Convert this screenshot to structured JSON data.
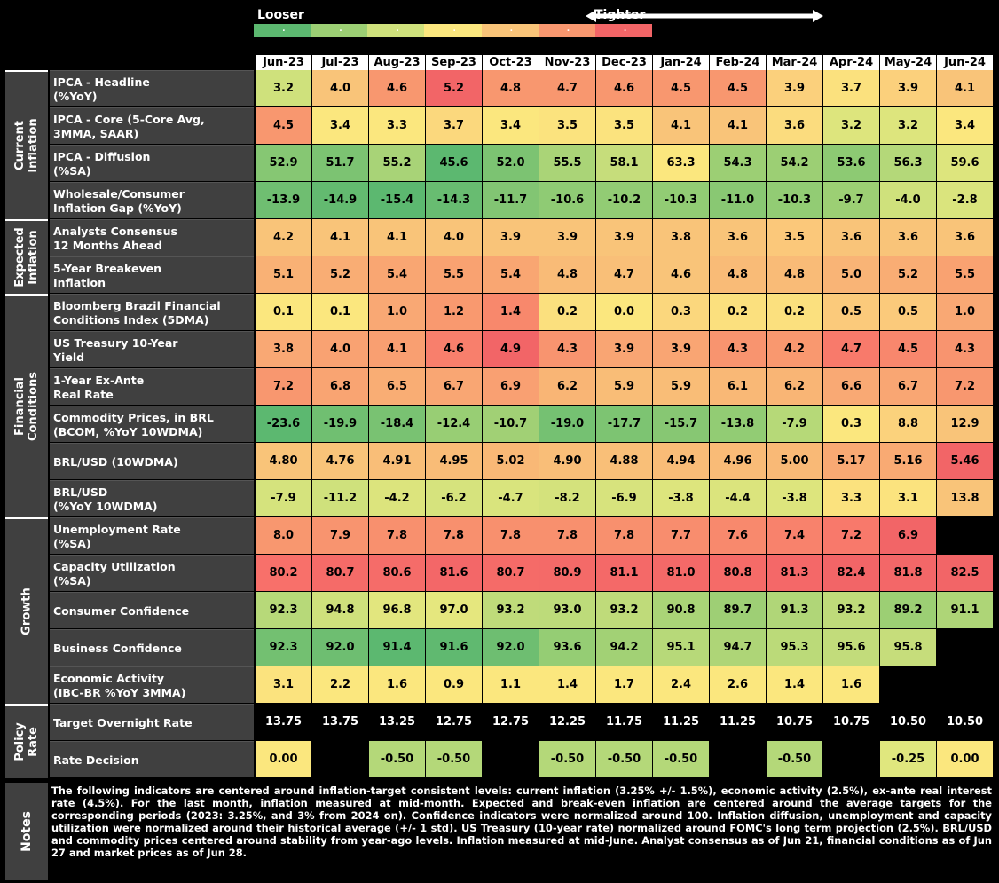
{
  "legend": {
    "left_label": "Looser",
    "right_label": "Tighter",
    "colors": [
      "#5cb870",
      "#9ccf74",
      "#cfe17c",
      "#fbe77e",
      "#f9c479",
      "#f8976f",
      "#f26567"
    ]
  },
  "chart_data": {
    "type": "heatmap",
    "columns": [
      "Jun-23",
      "Jul-23",
      "Aug-23",
      "Sep-23",
      "Oct-23",
      "Nov-23",
      "Dec-23",
      "Jan-24",
      "Feb-24",
      "Mar-24",
      "Apr-24",
      "May-24",
      "Jun-24"
    ],
    "groups": [
      {
        "name_line1": "Current",
        "name_line2": "Inflation",
        "rows": [
          {
            "label_line1": "IPCA - Headline",
            "label_line2": "(%YoY)",
            "values": [
              "3.2",
              "4.0",
              "4.6",
              "5.2",
              "4.8",
              "4.7",
              "4.6",
              "4.5",
              "4.5",
              "3.9",
              "3.7",
              "3.9",
              "4.1"
            ],
            "colors": [
              "#cfe17c",
              "#f9c479",
              "#f8976f",
              "#f26567",
              "#f8976f",
              "#f8976f",
              "#f8976f",
              "#f8976f",
              "#f8976f",
              "#fbd07c",
              "#fbe17e",
              "#fbd07c",
              "#f9c479"
            ]
          },
          {
            "label_line1": "IPCA - Core (5-Core Avg,",
            "label_line2": "3MMA, SAAR)",
            "values": [
              "4.5",
              "3.4",
              "3.3",
              "3.7",
              "3.4",
              "3.5",
              "3.5",
              "4.1",
              "4.1",
              "3.6",
              "3.2",
              "3.2",
              "3.4"
            ],
            "colors": [
              "#f8976f",
              "#fbe77e",
              "#fbe77e",
              "#fbd87d",
              "#fbe77e",
              "#fbe37e",
              "#fbe37e",
              "#f9c479",
              "#f9c479",
              "#fbdc7e",
              "#dde57d",
              "#dde57d",
              "#fbe77e"
            ]
          },
          {
            "label_line1": "IPCA - Diffusion",
            "label_line2": "(%SA)",
            "values": [
              "52.9",
              "51.7",
              "55.2",
              "45.6",
              "52.0",
              "55.5",
              "58.1",
              "63.3",
              "54.3",
              "54.2",
              "53.6",
              "56.3",
              "59.6"
            ],
            "colors": [
              "#86c773",
              "#7cc372",
              "#a8d377",
              "#5cb870",
              "#7cc372",
              "#aad477",
              "#c6dd7b",
              "#fbe77e",
              "#9ccf74",
              "#9ccf74",
              "#8dca73",
              "#b4d879",
              "#dde57d"
            ]
          },
          {
            "label_line1": "Wholesale/Consumer",
            "label_line2": "Inflation Gap (%YoY)",
            "values": [
              "-13.9",
              "-14.9",
              "-15.4",
              "-14.3",
              "-11.7",
              "-10.6",
              "-10.2",
              "-10.3",
              "-11.0",
              "-10.3",
              "-9.7",
              "-4.0",
              "-2.8"
            ],
            "colors": [
              "#6fbe71",
              "#63ba70",
              "#5cb870",
              "#68bc71",
              "#82c573",
              "#8fcb74",
              "#92cc74",
              "#92cc74",
              "#89c873",
              "#92cc74",
              "#9ccf74",
              "#cfe17c",
              "#dae47d"
            ]
          }
        ]
      },
      {
        "name_line1": "Expected",
        "name_line2": "Inflation",
        "rows": [
          {
            "label_line1": "Analysts Consensus",
            "label_line2": "12 Months Ahead",
            "values": [
              "4.2",
              "4.1",
              "4.1",
              "4.0",
              "3.9",
              "3.9",
              "3.9",
              "3.8",
              "3.6",
              "3.5",
              "3.6",
              "3.6",
              "3.6"
            ],
            "colors": [
              "#f9c479",
              "#f9c479",
              "#f9c479",
              "#f9c479",
              "#f9c479",
              "#f9c479",
              "#f9c479",
              "#f9c479",
              "#f9c479",
              "#fbc87a",
              "#f9c479",
              "#f9c479",
              "#f9c479"
            ]
          },
          {
            "label_line1": "5-Year Breakeven",
            "label_line2": "Inflation",
            "values": [
              "5.1",
              "5.2",
              "5.4",
              "5.5",
              "5.4",
              "4.8",
              "4.7",
              "4.6",
              "4.8",
              "4.8",
              "5.0",
              "5.2",
              "5.5"
            ],
            "colors": [
              "#f9b175",
              "#f9ad74",
              "#f9a672",
              "#f9a271",
              "#f9a672",
              "#f9bb77",
              "#f9bf78",
              "#f9c479",
              "#f9bb77",
              "#f9bb77",
              "#f9b476",
              "#f9ad74",
              "#f9a271"
            ]
          }
        ]
      },
      {
        "name_line1": "Financial",
        "name_line2": "Conditions",
        "rows": [
          {
            "label_line1": "Bloomberg Brazil Financial",
            "label_line2": "Conditions Index (5DMA)",
            "values": [
              "0.1",
              "0.1",
              "1.0",
              "1.2",
              "1.4",
              "0.2",
              "0.0",
              "0.3",
              "0.2",
              "0.2",
              "0.5",
              "0.5",
              "1.0"
            ],
            "colors": [
              "#fbe77e",
              "#fbe77e",
              "#f9a874",
              "#f9996f",
              "#f8886c",
              "#fbe07e",
              "#fbe77e",
              "#fbd77d",
              "#fbe07e",
              "#fbe07e",
              "#fbca7b",
              "#fbca7b",
              "#f9a874"
            ]
          },
          {
            "label_line1": "US Treasury 10-Year",
            "label_line2": "Yield",
            "values": [
              "3.8",
              "4.0",
              "4.1",
              "4.6",
              "4.9",
              "4.3",
              "3.9",
              "3.9",
              "4.3",
              "4.2",
              "4.7",
              "4.5",
              "4.3"
            ],
            "colors": [
              "#f9a874",
              "#f9a272",
              "#f99f71",
              "#f87f6c",
              "#f26567",
              "#f8946f",
              "#f9a573",
              "#f9a573",
              "#f8946f",
              "#f9986f",
              "#f87a6b",
              "#f8876d",
              "#f8946f"
            ]
          },
          {
            "label_line1": "1-Year Ex-Ante",
            "label_line2": "Real Rate",
            "values": [
              "7.2",
              "6.8",
              "6.5",
              "6.7",
              "6.9",
              "6.2",
              "5.9",
              "5.9",
              "6.1",
              "6.2",
              "6.6",
              "6.7",
              "7.2"
            ],
            "colors": [
              "#f8976f",
              "#f9a472",
              "#f9ad74",
              "#f9a673",
              "#f9a072",
              "#f9b575",
              "#f9bd77",
              "#f9bd77",
              "#f9b876",
              "#f9b575",
              "#f9a974",
              "#f9a673",
              "#f8976f"
            ]
          },
          {
            "label_line1": "Commodity Prices, in BRL",
            "label_line2": "(BCOM, %YoY 10WDMA)",
            "values": [
              "-23.6",
              "-19.9",
              "-18.4",
              "-12.4",
              "-10.7",
              "-19.0",
              "-17.7",
              "-15.7",
              "-13.8",
              "-7.9",
              "0.3",
              "8.8",
              "12.9"
            ],
            "colors": [
              "#5cb870",
              "#70bf71",
              "#79c272",
              "#98ce74",
              "#a1d075",
              "#75c172",
              "#7dc472",
              "#87c773",
              "#92cc74",
              "#b6d978",
              "#fbe77e",
              "#fbd27c",
              "#f9c479"
            ]
          },
          {
            "label_line1": "BRL/USD (10WDMA)",
            "label_line2": "",
            "values": [
              "4.80",
              "4.76",
              "4.91",
              "4.95",
              "5.02",
              "4.90",
              "4.88",
              "4.94",
              "4.96",
              "5.00",
              "5.17",
              "5.16",
              "5.46"
            ],
            "colors": [
              "#f9c479",
              "#f9c479",
              "#f9be78",
              "#f9bc77",
              "#f9b876",
              "#f9be78",
              "#f9bf78",
              "#f9bc77",
              "#f9bb77",
              "#f9b976",
              "#f9a973",
              "#f9aa73",
              "#f26567"
            ]
          },
          {
            "label_line1": "BRL/USD",
            "label_line2": "(%YoY 10WDMA)",
            "values": [
              "-7.9",
              "-11.2",
              "-4.2",
              "-6.2",
              "-4.7",
              "-8.2",
              "-6.9",
              "-3.8",
              "-4.4",
              "-3.8",
              "3.3",
              "3.1",
              "13.8"
            ],
            "colors": [
              "#d5e37d",
              "#cfe17c",
              "#dce47d",
              "#d6e37d",
              "#d9e47d",
              "#d4e27c",
              "#d7e37d",
              "#dde57d",
              "#dbe47d",
              "#dde57d",
              "#fbe27e",
              "#fbe37e",
              "#f9c479"
            ]
          }
        ]
      },
      {
        "name_line1": "Growth",
        "name_line2": "",
        "rows": [
          {
            "label_line1": "Unemployment Rate",
            "label_line2": "(%SA)",
            "values": [
              "8.0",
              "7.9",
              "7.8",
              "7.8",
              "7.8",
              "7.8",
              "7.8",
              "7.7",
              "7.6",
              "7.4",
              "7.2",
              "6.9",
              ""
            ],
            "colors": [
              "#f8976f",
              "#f8946f",
              "#f8906e",
              "#f8906e",
              "#f8906e",
              "#f8906e",
              "#f8906e",
              "#f88d6e",
              "#f8896d",
              "#f8826c",
              "#f8796b",
              "#f26567",
              "#000000"
            ]
          },
          {
            "label_line1": "Capacity Utilization",
            "label_line2": "(%SA)",
            "values": [
              "80.2",
              "80.7",
              "80.6",
              "81.6",
              "80.7",
              "80.9",
              "81.1",
              "81.0",
              "80.8",
              "81.3",
              "82.4",
              "81.8",
              "82.5"
            ],
            "colors": [
              "#f8706a",
              "#f56b68",
              "#f56c69",
              "#f36768",
              "#f56b68",
              "#f46a68",
              "#f46968",
              "#f46968",
              "#f56b68",
              "#f46868",
              "#f26567",
              "#f36768",
              "#f26567"
            ]
          },
          {
            "label_line1": "Consumer Confidence",
            "label_line2": "",
            "values": [
              "92.3",
              "94.8",
              "96.8",
              "97.0",
              "93.2",
              "93.0",
              "93.2",
              "90.8",
              "89.7",
              "91.3",
              "93.2",
              "89.2",
              "91.1"
            ],
            "colors": [
              "#b7d979",
              "#cfe17c",
              "#e2e67e",
              "#e5e77e",
              "#bfdb7a",
              "#bddb7a",
              "#bfdb7a",
              "#aad477",
              "#9ecf75",
              "#b0d678",
              "#bfdb7a",
              "#9ccf74",
              "#aed577"
            ]
          },
          {
            "label_line1": "Business Confidence",
            "label_line2": "",
            "values": [
              "92.3",
              "92.0",
              "91.4",
              "91.6",
              "92.0",
              "93.6",
              "94.2",
              "95.1",
              "94.7",
              "95.3",
              "95.6",
              "95.8",
              ""
            ],
            "colors": [
              "#73c071",
              "#6ebe71",
              "#5cb870",
              "#60b970",
              "#6ebe71",
              "#95cd74",
              "#a2d175",
              "#b7d979",
              "#aed577",
              "#bbda79",
              "#c2dc7b",
              "#c6dd7b",
              "#000000"
            ]
          },
          {
            "label_line1": "Economic Activity",
            "label_line2": "(IBC-BR %YoY 3MMA)",
            "values": [
              "3.1",
              "2.2",
              "1.6",
              "0.9",
              "1.1",
              "1.4",
              "1.7",
              "2.4",
              "2.6",
              "1.4",
              "1.6",
              "",
              ""
            ],
            "colors": [
              "#fbe37e",
              "#fbe77e",
              "#fbe77e",
              "#fbe77e",
              "#fbe77e",
              "#fbe77e",
              "#fbe77e",
              "#fbe77e",
              "#fbe77e",
              "#fbe77e",
              "#fbe77e",
              "#000000",
              "#000000"
            ]
          }
        ]
      },
      {
        "name_line1": "Policy",
        "name_line2": "Rate",
        "rows": [
          {
            "label_line1": "Target Overnight Rate",
            "label_line2": "",
            "values": [
              "13.75",
              "13.75",
              "13.25",
              "12.75",
              "12.75",
              "12.25",
              "11.75",
              "11.25",
              "11.25",
              "10.75",
              "10.75",
              "10.50",
              "10.50"
            ],
            "colors": [
              "#000000",
              "#000000",
              "#000000",
              "#000000",
              "#000000",
              "#000000",
              "#000000",
              "#000000",
              "#000000",
              "#000000",
              "#000000",
              "#000000",
              "#000000"
            ],
            "text_color": "#ffffff"
          },
          {
            "label_line1": "Rate Decision",
            "label_line2": "",
            "values": [
              "0.00",
              "",
              "-0.50",
              "-0.50",
              "",
              "-0.50",
              "-0.50",
              "-0.50",
              "",
              "-0.50",
              "",
              "-0.25",
              "0.00"
            ],
            "colors": [
              "#fbe77e",
              "#000000",
              "#b4d879",
              "#b4d879",
              "#000000",
              "#b4d879",
              "#b4d879",
              "#b4d879",
              "#000000",
              "#b4d879",
              "#000000",
              "#e0e77e",
              "#fbe77e"
            ]
          }
        ]
      }
    ]
  },
  "notes": {
    "label": "Notes",
    "text": "The following indicators are centered around inflation-target consistent levels: current inflation (3.25% +/- 1.5%), economic activity (2.5%), ex-ante real interest rate (4.5%). For the last month, inflation measured at mid-month. Expected and break-even inflation are centered around the average targets for the corresponding periods (2023: 3.25%, and 3% from 2024 on). Confidence indicators were normalized around 100. Inflation diffusion, unemployment and capacity utilization were normalized around their historical average (+/- 1 std). US Treasury (10-year rate) normalized around FOMC's long term projection (2.5%). BRL/USD and commodity prices centered around stability from year-ago levels. Inflation measured at mid-June. Analyst consensus as of Jun 21, financial conditions as of Jun 27 and market prices as of Jun 28."
  }
}
